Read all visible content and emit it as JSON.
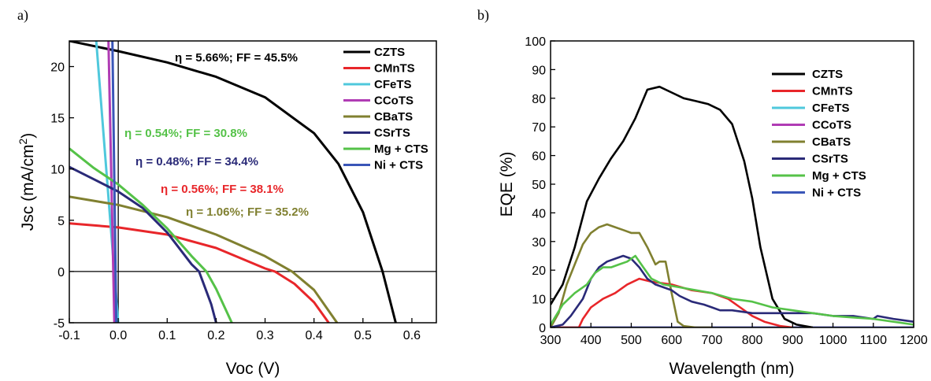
{
  "chart_data": [
    {
      "panel_label": "a)",
      "type": "line",
      "xlabel": "Voc (V)",
      "ylabel_main": "Jsc (mA/cm",
      "ylabel_sup": "2",
      "ylabel_close": ")",
      "xlim": [
        -0.1,
        0.65
      ],
      "ylim": [
        -5,
        22.5
      ],
      "xticks": [
        "-0.1",
        "0.0",
        "0.1",
        "0.2",
        "0.3",
        "0.4",
        "0.5",
        "0.6"
      ],
      "yticks": [
        "-5",
        "0",
        "5",
        "10",
        "15",
        "20"
      ],
      "legend_position": "top-right",
      "series": [
        {
          "name": "CZTS",
          "color": "#000000",
          "x": [
            -0.1,
            0.0,
            0.1,
            0.2,
            0.3,
            0.4,
            0.45,
            0.5,
            0.54,
            0.567
          ],
          "y": [
            22.5,
            21.5,
            20.4,
            19.0,
            17.0,
            13.5,
            10.5,
            5.8,
            0,
            -5
          ]
        },
        {
          "name": "CMnTS",
          "color": "#e8262a",
          "x": [
            -0.1,
            0.0,
            0.1,
            0.2,
            0.25,
            0.3,
            0.32,
            0.36,
            0.4,
            0.43
          ],
          "y": [
            4.7,
            4.3,
            3.6,
            2.3,
            1.3,
            0.3,
            0,
            -1.2,
            -3.0,
            -5
          ]
        },
        {
          "name": "CFeTS",
          "color": "#4fc8dc",
          "x": [
            -0.045,
            0.0
          ],
          "y": [
            22.5,
            -5
          ]
        },
        {
          "name": "CCoTS",
          "color": "#b03cb4",
          "x": [
            -0.02,
            -0.008
          ],
          "y": [
            22.5,
            -5
          ]
        },
        {
          "name": "CBaTS",
          "color": "#808030",
          "x": [
            -0.1,
            0.0,
            0.1,
            0.2,
            0.3,
            0.355,
            0.4,
            0.447
          ],
          "y": [
            7.3,
            6.5,
            5.3,
            3.6,
            1.5,
            0,
            -1.8,
            -5
          ]
        },
        {
          "name": "CSrTS",
          "color": "#2a2a78",
          "x": [
            -0.1,
            -0.05,
            0.0,
            0.05,
            0.1,
            0.15,
            0.165,
            0.19,
            0.2
          ],
          "y": [
            10.2,
            9.0,
            7.8,
            6.2,
            3.8,
            0.7,
            0,
            -3.2,
            -5
          ]
        },
        {
          "name": "Mg + CTS",
          "color": "#55c248",
          "x": [
            -0.1,
            -0.05,
            0.0,
            0.05,
            0.1,
            0.15,
            0.18,
            0.2,
            0.232
          ],
          "y": [
            12.0,
            10.1,
            8.5,
            6.5,
            4.2,
            1.5,
            0,
            -1.7,
            -5
          ]
        },
        {
          "name": "Ni + CTS",
          "color": "#3a56b8",
          "x": [
            -0.012,
            -0.004
          ],
          "y": [
            22.5,
            -5
          ]
        }
      ],
      "annotations": [
        {
          "text": "η = 5.66%; FF = 45.5%",
          "color": "#000000"
        },
        {
          "text": "η = 0.54%; FF = 30.8%",
          "color": "#55c248"
        },
        {
          "text": "η = 0.48%; FF = 34.4%",
          "color": "#2a2a78"
        },
        {
          "text": "η = 0.56%; FF = 38.1%",
          "color": "#e8262a"
        },
        {
          "text": "η = 1.06%; FF = 35.2%",
          "color": "#808030"
        }
      ]
    },
    {
      "panel_label": "b)",
      "type": "line",
      "xlabel": "Wavelength (nm)",
      "ylabel": "EQE  (%)",
      "xlim": [
        300,
        1200
      ],
      "ylim": [
        0,
        100
      ],
      "xticks": [
        "300",
        "400",
        "500",
        "600",
        "700",
        "800",
        "900",
        "1000",
        "1100",
        "1200"
      ],
      "yticks": [
        "0",
        "10",
        "20",
        "30",
        "40",
        "50",
        "60",
        "70",
        "80",
        "90",
        "100"
      ],
      "legend_position": "top-right",
      "series": [
        {
          "name": "CZTS",
          "color": "#000000",
          "x": [
            300,
            330,
            360,
            390,
            420,
            450,
            480,
            510,
            540,
            570,
            600,
            630,
            660,
            690,
            720,
            750,
            780,
            800,
            820,
            850,
            880,
            910,
            950
          ],
          "y": [
            8,
            15,
            28,
            44,
            52,
            59,
            65,
            73,
            83,
            84,
            82,
            80,
            79,
            78,
            76,
            71,
            58,
            45,
            28,
            10,
            3,
            1,
            0
          ]
        },
        {
          "name": "CMnTS",
          "color": "#e8262a",
          "x": [
            300,
            370,
            380,
            400,
            430,
            460,
            490,
            520,
            550,
            600,
            650,
            700,
            740,
            770,
            800,
            830,
            870,
            900
          ],
          "y": [
            0,
            0,
            3,
            7,
            10,
            12,
            15,
            17,
            16,
            15,
            13,
            12,
            10,
            7,
            4,
            2,
            0.5,
            0
          ]
        },
        {
          "name": "CFeTS",
          "color": "#4fc8dc",
          "x": [
            300,
            1200
          ],
          "y": [
            0,
            0
          ]
        },
        {
          "name": "CCoTS",
          "color": "#b03cb4",
          "x": [
            300,
            1200
          ],
          "y": [
            0,
            0
          ]
        },
        {
          "name": "CBaTS",
          "color": "#808030",
          "x": [
            300,
            320,
            340,
            360,
            380,
            400,
            420,
            440,
            460,
            480,
            500,
            520,
            540,
            560,
            570,
            585,
            600,
            615,
            630,
            660,
            700
          ],
          "y": [
            0,
            5,
            15,
            22,
            29,
            33,
            35,
            36,
            35,
            34,
            33,
            33,
            28,
            22,
            23,
            23,
            12,
            2,
            0.5,
            0,
            0
          ]
        },
        {
          "name": "CSrTS",
          "color": "#2a2a78",
          "x": [
            300,
            330,
            350,
            380,
            400,
            420,
            440,
            460,
            480,
            500,
            520,
            540,
            560,
            580,
            600,
            620,
            650,
            680,
            700,
            720,
            750,
            800,
            850,
            900,
            950,
            1000,
            1050,
            1100,
            1110,
            1150,
            1200
          ],
          "y": [
            0,
            1,
            4,
            10,
            17,
            21,
            23,
            24,
            25,
            24,
            21,
            17,
            15,
            14,
            13,
            11,
            9,
            8,
            7,
            6,
            6,
            5,
            5,
            5,
            5,
            4,
            4,
            3,
            4,
            3,
            2
          ]
        },
        {
          "name": "Mg + CTS",
          "color": "#55c248",
          "x": [
            300,
            330,
            360,
            390,
            410,
            430,
            450,
            470,
            490,
            510,
            530,
            550,
            580,
            620,
            660,
            700,
            750,
            800,
            850,
            900,
            950,
            1000,
            1050,
            1100,
            1150,
            1200
          ],
          "y": [
            1,
            8,
            12,
            15,
            19,
            21,
            21,
            22,
            23,
            25,
            21,
            17,
            15,
            14,
            13,
            12,
            10,
            9,
            7,
            6,
            5,
            4,
            3.5,
            3,
            2,
            1
          ]
        },
        {
          "name": "Ni + CTS",
          "color": "#3a56b8",
          "x": [
            300,
            1200
          ],
          "y": [
            0,
            0
          ]
        }
      ]
    }
  ]
}
